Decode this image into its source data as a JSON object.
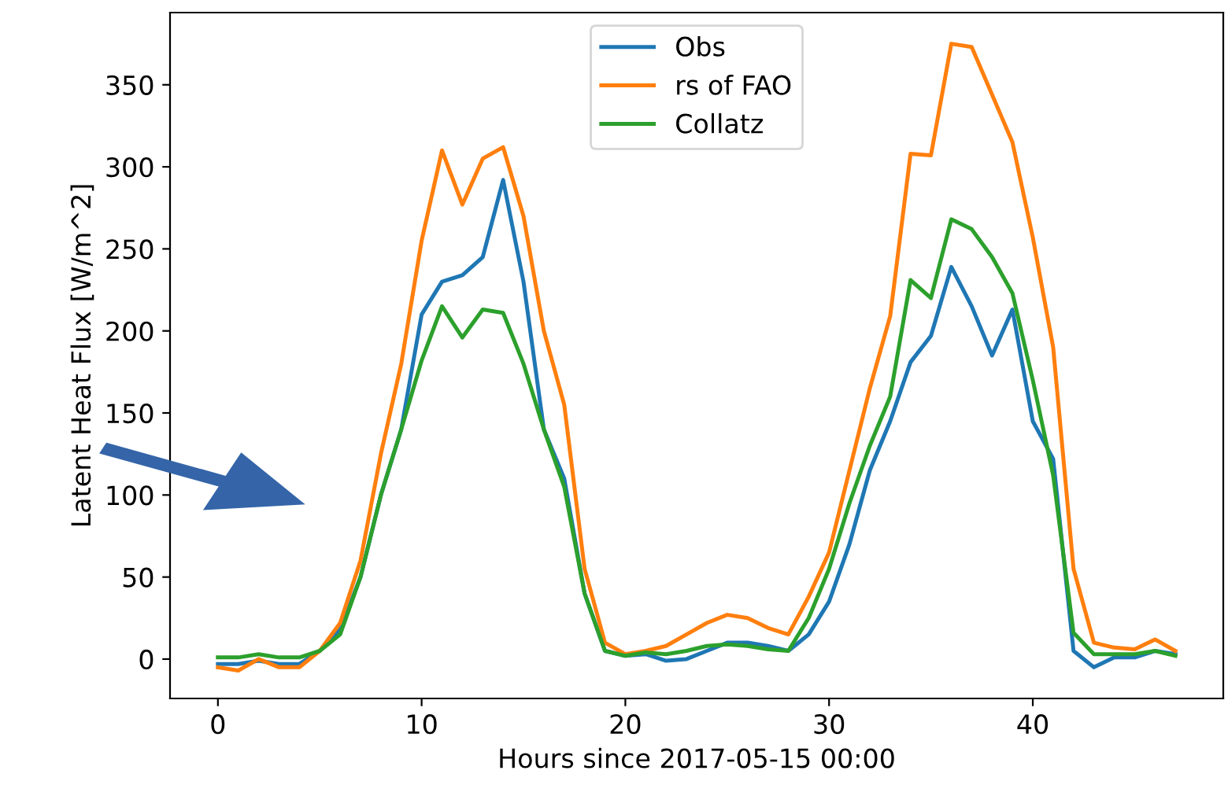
{
  "chart_data": {
    "type": "line",
    "xlabel": "Hours since 2017-05-15 00:00",
    "ylabel": "Latent Heat Flux [W/m^2]",
    "x": [
      0,
      1,
      2,
      3,
      4,
      5,
      6,
      7,
      8,
      9,
      10,
      11,
      12,
      13,
      14,
      15,
      16,
      17,
      18,
      19,
      20,
      21,
      22,
      23,
      24,
      25,
      26,
      27,
      28,
      29,
      30,
      31,
      32,
      33,
      34,
      35,
      36,
      37,
      38,
      39,
      40,
      41,
      42,
      43,
      44,
      45,
      46,
      47
    ],
    "series": [
      {
        "name": "Obs",
        "color": "#1f77b4",
        "values": [
          -3,
          -3,
          -1,
          -3,
          -3,
          5,
          18,
          50,
          100,
          140,
          210,
          230,
          234,
          245,
          292,
          230,
          140,
          110,
          40,
          5,
          2,
          3,
          -1,
          0,
          5,
          10,
          10,
          8,
          5,
          15,
          35,
          70,
          115,
          145,
          181,
          197,
          239,
          215,
          185,
          213,
          145,
          122,
          5,
          -5,
          1,
          1,
          5,
          3
        ]
      },
      {
        "name": "rs of FAO",
        "color": "#ff7f0e",
        "values": [
          -5,
          -7,
          0,
          -5,
          -5,
          5,
          22,
          60,
          125,
          180,
          255,
          310,
          277,
          305,
          312,
          270,
          200,
          155,
          55,
          10,
          3,
          5,
          8,
          15,
          22,
          27,
          25,
          19,
          15,
          38,
          65,
          115,
          165,
          209,
          308,
          307,
          375,
          373,
          344,
          315,
          257,
          190,
          55,
          10,
          7,
          6,
          12,
          5
        ]
      },
      {
        "name": "Collatz",
        "color": "#2ca02c",
        "values": [
          1,
          1,
          3,
          1,
          1,
          5,
          15,
          50,
          100,
          140,
          182,
          215,
          196,
          213,
          211,
          180,
          140,
          105,
          40,
          5,
          2,
          4,
          3,
          5,
          8,
          9,
          8,
          6,
          5,
          25,
          55,
          95,
          130,
          160,
          231,
          220,
          268,
          262,
          245,
          223,
          170,
          112,
          16,
          3,
          3,
          3,
          5,
          2
        ]
      }
    ],
    "xlim": [
      -2.35,
      49.35
    ],
    "ylim": [
      -24,
      394
    ],
    "xticks": [
      0,
      10,
      20,
      30,
      40
    ],
    "yticks": [
      0,
      50,
      100,
      150,
      200,
      250,
      300,
      350
    ],
    "legend": "top",
    "grid": false
  }
}
